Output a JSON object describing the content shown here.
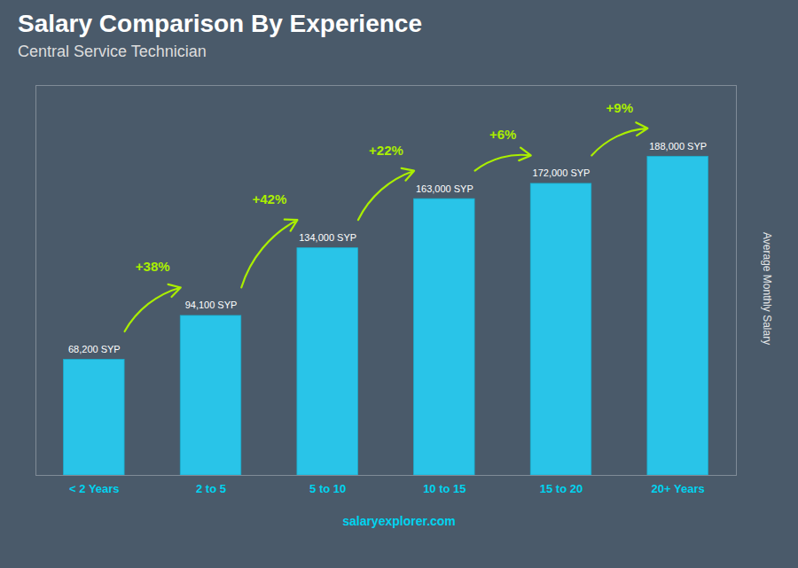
{
  "chart_data": {
    "type": "bar",
    "title": "Salary Comparison By Experience",
    "subtitle": "Central Service Technician",
    "ylabel": "Average Monthly Salary",
    "caption": "salaryexplorer.com",
    "categories": [
      "< 2 Years",
      "2 to 5",
      "5 to 10",
      "10 to 15",
      "15 to 20",
      "20+ Years"
    ],
    "values": [
      68200,
      94100,
      134000,
      163000,
      172000,
      188000
    ],
    "value_labels": [
      "68,200 SYP",
      "94,100 SYP",
      "134,000 SYP",
      "163,000 SYP",
      "172,000 SYP",
      "188,000 SYP"
    ],
    "data_labels": true,
    "annotations": [
      "+38%",
      "+42%",
      "+22%",
      "+6%",
      "+9%"
    ],
    "color": "#29c4e8",
    "ylim": [
      0,
      230000
    ],
    "yticks": [],
    "tick_labels": "x",
    "grid": false
  }
}
